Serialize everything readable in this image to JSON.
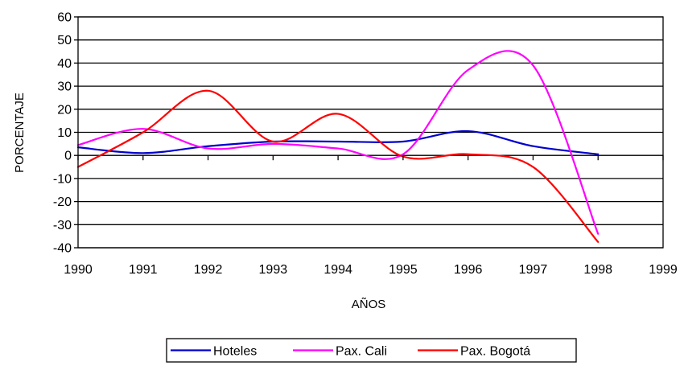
{
  "chart_data": {
    "type": "line",
    "title": "",
    "xlabel": "AÑOS",
    "ylabel": "PORCENTAJE",
    "x_ticks": [
      "1990",
      "1991",
      "1992",
      "1993",
      "1994",
      "1995",
      "1996",
      "1997",
      "1998",
      "1999"
    ],
    "y_ticks": [
      "60",
      "50",
      "40",
      "30",
      "20",
      "10",
      "0",
      "-10",
      "-20",
      "-30",
      "-40"
    ],
    "ylim": [
      -40,
      60
    ],
    "xlim": [
      1990,
      1999
    ],
    "grid": "horizontal",
    "legend_position": "bottom",
    "smooth": true,
    "series": [
      {
        "name": "Hoteles",
        "color": "#0000cc",
        "x": [
          1990,
          1991,
          1992,
          1993,
          1994,
          1995,
          1996,
          1997,
          1998
        ],
        "values": [
          3.5,
          1,
          4,
          6,
          6,
          6,
          10.5,
          4,
          0.5
        ]
      },
      {
        "name": "Pax. Cali",
        "color": "#ff00ff",
        "x": [
          1990,
          1991,
          1992,
          1993,
          1994,
          1995,
          1996,
          1997,
          1998
        ],
        "values": [
          4.5,
          11.5,
          3,
          5,
          3,
          0.5,
          37,
          39,
          -34
        ]
      },
      {
        "name": "Pax. Bogotá",
        "color": "#ff0000",
        "x": [
          1990,
          1991,
          1992,
          1993,
          1994,
          1995,
          1996,
          1997,
          1998
        ],
        "values": [
          -5,
          10,
          28,
          6,
          18,
          -0.5,
          0.5,
          -5,
          -37.5
        ]
      }
    ]
  }
}
